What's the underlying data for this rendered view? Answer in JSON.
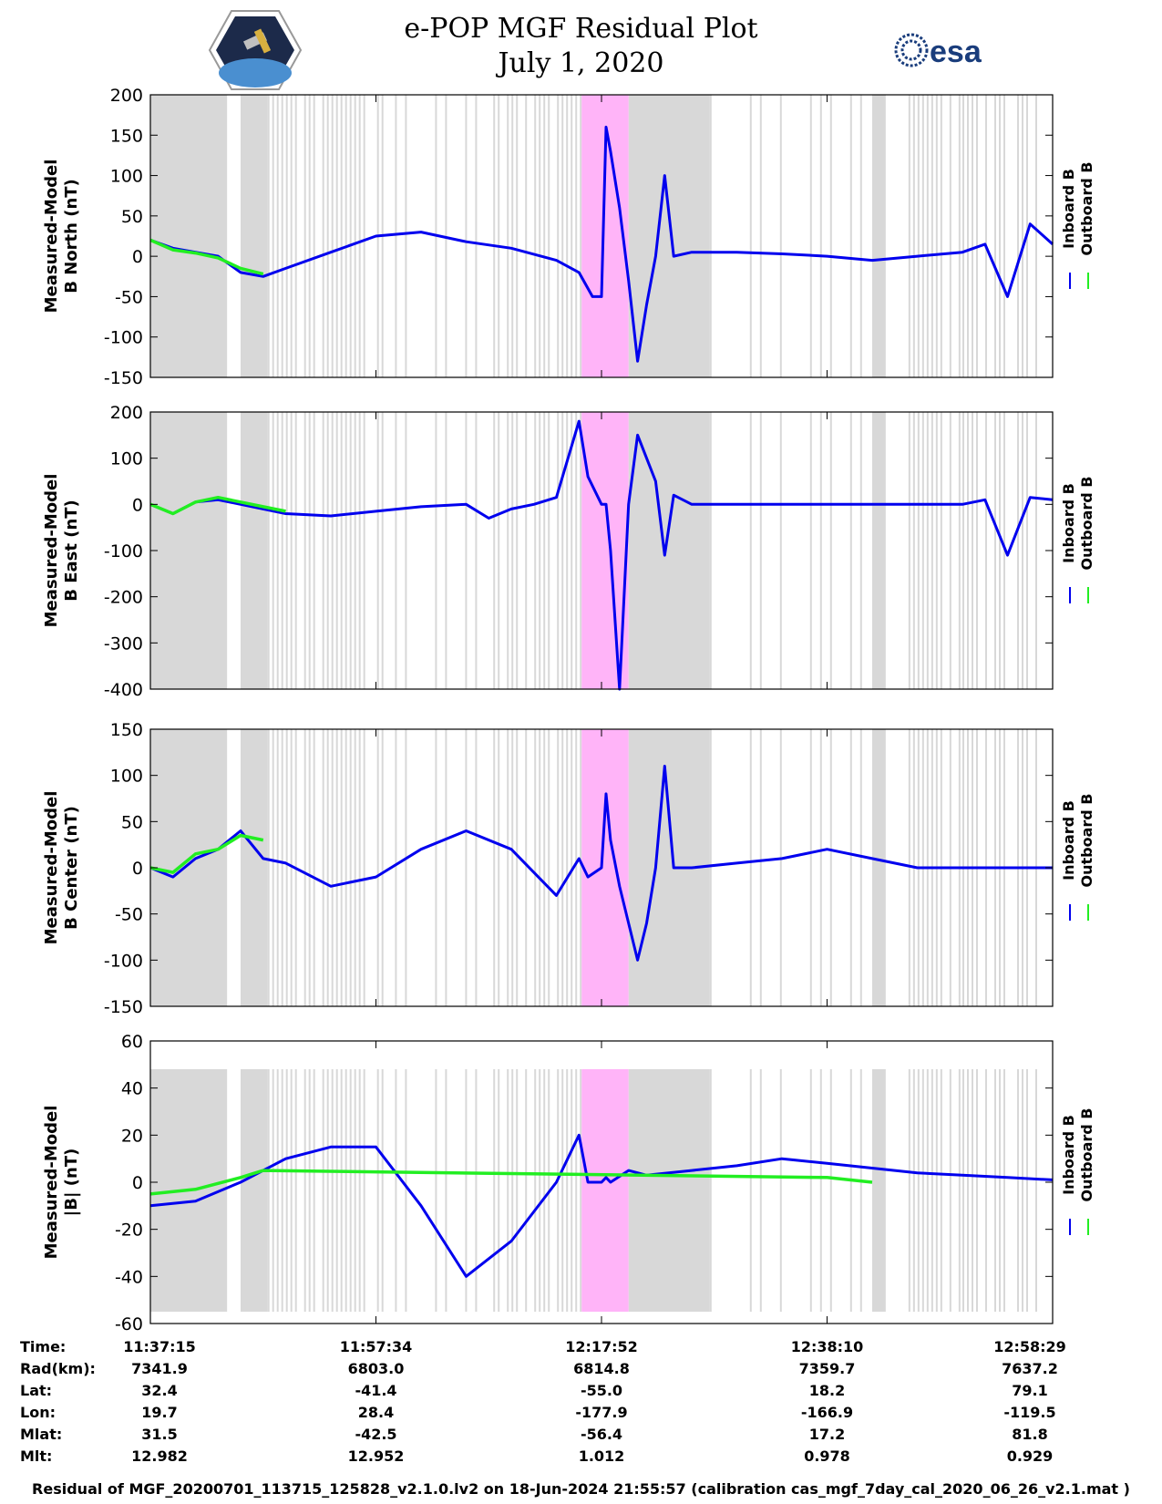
{
  "title": "e-POP MGF Residual Plot",
  "subtitle": "July 1, 2020",
  "logos": {
    "left": "satellite-mission-patch",
    "right_text": "esa"
  },
  "legend": {
    "inboard": "Inboard B",
    "outboard": "Outboard B"
  },
  "colors": {
    "inboard": "#0000ee",
    "outboard": "#22ee22",
    "gap": "#d8d8d8",
    "pink": "#ffb4f8"
  },
  "chart_data": [
    {
      "type": "line",
      "ylabel": [
        "Measured-Model",
        "B North (nT)"
      ],
      "ylim": [
        -150,
        200
      ],
      "yticks": [
        200,
        150,
        100,
        50,
        0,
        -50,
        -100,
        -150
      ],
      "series": [
        {
          "name": "Inboard B",
          "x": [
            0,
            5,
            10,
            15,
            20,
            25,
            30,
            40,
            50,
            60,
            70,
            80,
            90,
            95,
            98,
            100,
            101,
            102,
            104,
            106,
            108,
            110,
            112,
            114,
            116,
            120,
            130,
            140,
            150,
            160,
            170,
            180,
            185,
            190,
            195,
            200
          ],
          "y": [
            20,
            10,
            5,
            0,
            -20,
            -25,
            -15,
            5,
            25,
            30,
            18,
            10,
            -5,
            -20,
            -50,
            -50,
            160,
            130,
            60,
            -30,
            -130,
            -60,
            0,
            100,
            0,
            5,
            5,
            3,
            0,
            -5,
            0,
            5,
            15,
            -50,
            40,
            15
          ]
        },
        {
          "name": "Outboard B",
          "x": [
            0,
            5,
            10,
            15,
            20,
            25
          ],
          "y": [
            20,
            8,
            4,
            -2,
            -15,
            -22
          ]
        }
      ]
    },
    {
      "type": "line",
      "ylabel": [
        "Measured-Model",
        "B East (nT)"
      ],
      "ylim": [
        -400,
        200
      ],
      "yticks": [
        200,
        100,
        0,
        -100,
        -200,
        -300,
        -400
      ],
      "series": [
        {
          "name": "Inboard B",
          "x": [
            0,
            5,
            10,
            15,
            20,
            25,
            30,
            40,
            50,
            60,
            70,
            75,
            80,
            85,
            90,
            95,
            97,
            100,
            101,
            102,
            104,
            106,
            108,
            110,
            112,
            114,
            116,
            120,
            130,
            140,
            150,
            160,
            170,
            180,
            185,
            190,
            195,
            200
          ],
          "y": [
            0,
            -20,
            5,
            10,
            0,
            -10,
            -20,
            -25,
            -15,
            -5,
            0,
            -30,
            -10,
            0,
            15,
            180,
            60,
            0,
            0,
            -100,
            -400,
            0,
            150,
            100,
            50,
            -110,
            20,
            0,
            0,
            0,
            0,
            0,
            0,
            0,
            10,
            -110,
            15,
            10
          ]
        },
        {
          "name": "Outboard B",
          "x": [
            0,
            5,
            10,
            15,
            20,
            25,
            30
          ],
          "y": [
            0,
            -20,
            5,
            15,
            5,
            -5,
            -15
          ]
        }
      ]
    },
    {
      "type": "line",
      "ylabel": [
        "Measured-Model",
        "B Center (nT)"
      ],
      "ylim": [
        -150,
        150
      ],
      "yticks": [
        150,
        100,
        50,
        0,
        -50,
        -100,
        -150
      ],
      "series": [
        {
          "name": "Inboard B",
          "x": [
            0,
            5,
            10,
            15,
            20,
            25,
            30,
            40,
            50,
            60,
            70,
            80,
            90,
            95,
            97,
            100,
            101,
            102,
            104,
            106,
            108,
            110,
            112,
            114,
            116,
            120,
            130,
            140,
            150,
            160,
            170,
            180,
            190,
            200
          ],
          "y": [
            0,
            -10,
            10,
            20,
            40,
            10,
            5,
            -20,
            -10,
            20,
            40,
            20,
            -30,
            10,
            -10,
            0,
            80,
            30,
            -20,
            -60,
            -100,
            -60,
            0,
            110,
            0,
            0,
            5,
            10,
            20,
            10,
            0,
            0,
            0,
            0
          ]
        },
        {
          "name": "Outboard B",
          "x": [
            0,
            5,
            10,
            15,
            20,
            25
          ],
          "y": [
            0,
            -5,
            15,
            20,
            35,
            30
          ]
        }
      ]
    },
    {
      "type": "line",
      "ylabel": [
        "Measured-Model",
        "|B| (nT)"
      ],
      "ylim": [
        -60,
        60
      ],
      "yticks": [
        60,
        40,
        20,
        0,
        -20,
        -40,
        -60
      ],
      "series": [
        {
          "name": "Inboard B",
          "x": [
            0,
            10,
            20,
            30,
            40,
            50,
            60,
            70,
            80,
            90,
            95,
            97,
            100,
            101,
            102,
            106,
            110,
            120,
            130,
            140,
            150,
            160,
            170,
            180,
            190,
            200
          ],
          "y": [
            -10,
            -8,
            0,
            10,
            15,
            15,
            -10,
            -40,
            -25,
            0,
            20,
            0,
            0,
            2,
            0,
            5,
            3,
            5,
            7,
            10,
            8,
            6,
            4,
            3,
            2,
            1
          ]
        },
        {
          "name": "Outboard B",
          "x": [
            0,
            10,
            20,
            25,
            150,
            160
          ],
          "y": [
            -5,
            -3,
            2,
            5,
            2,
            0
          ]
        }
      ]
    }
  ],
  "xaxis": {
    "row_labels": [
      "Time:",
      "Rad(km):",
      "Lat:",
      "Lon:",
      "Mlat:",
      "Mlt:"
    ],
    "columns": [
      [
        "11:37:15",
        "7341.9",
        "32.4",
        "19.7",
        "31.5",
        "12.982"
      ],
      [
        "11:57:34",
        "6803.0",
        "-41.4",
        "28.4",
        "-42.5",
        "12.952"
      ],
      [
        "12:17:52",
        "6814.8",
        "-55.0",
        "-177.9",
        "-56.4",
        "1.012"
      ],
      [
        "12:38:10",
        "7359.7",
        "18.2",
        "-166.9",
        "17.2",
        "0.978"
      ],
      [
        "12:58:29",
        "7637.2",
        "79.1",
        "-119.5",
        "81.8",
        "0.929"
      ]
    ]
  },
  "footer": "Residual of MGF_20200701_113715_125828_v2.1.0.lv2 on 18-Jun-2024 21:55:57 (calibration cas_mgf_7day_cal_2020_06_26_v2.1.mat )"
}
